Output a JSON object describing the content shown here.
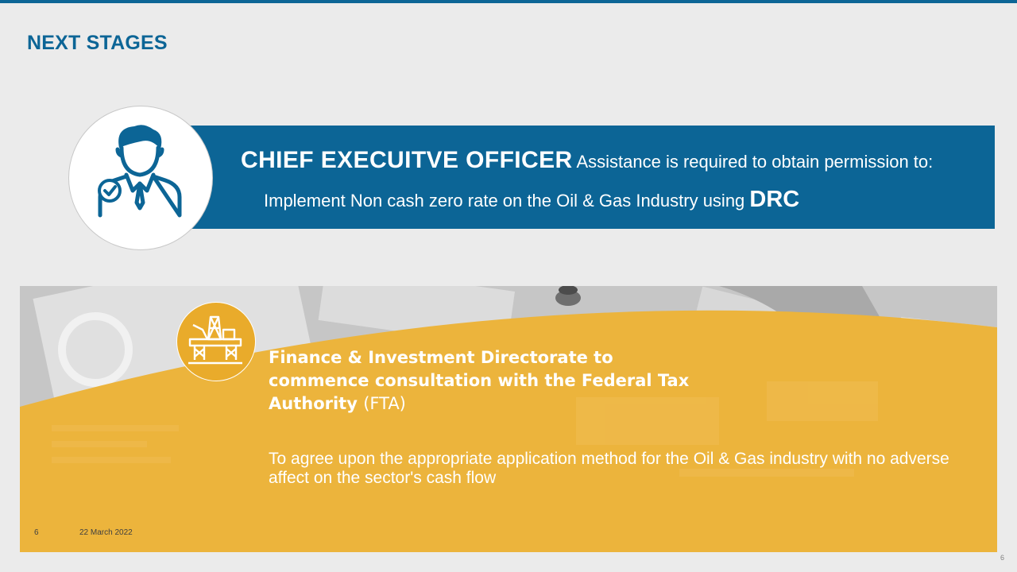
{
  "slide": {
    "title": "NEXT STAGES",
    "page_number": "6",
    "date": "22 March 2022",
    "corner_page_number": "6"
  },
  "ceo_card": {
    "role": "CHIEF EXECUITVE OFFICER",
    "text_part1": "Assistance is required to obtain permission to:",
    "line2_text": "Implement Non cash zero rate on the Oil & Gas Industry using",
    "line2_emphasis": "DRC",
    "icon": "businessman-check-icon"
  },
  "finance_card": {
    "heading": "Finance & Investment Directorate to commence consultation with the Federal Tax Authority",
    "heading_suffix": "(FTA)",
    "body": "To agree upon the appropriate application method for the Oil & Gas industry with no adverse affect on the sector's cash flow",
    "icon": "oil-rig-icon",
    "background_image": "business-documents-photo"
  },
  "colors": {
    "brand_blue": "#0c6596",
    "accent_gold": "#e9ab2b",
    "background": "#ebebeb"
  }
}
